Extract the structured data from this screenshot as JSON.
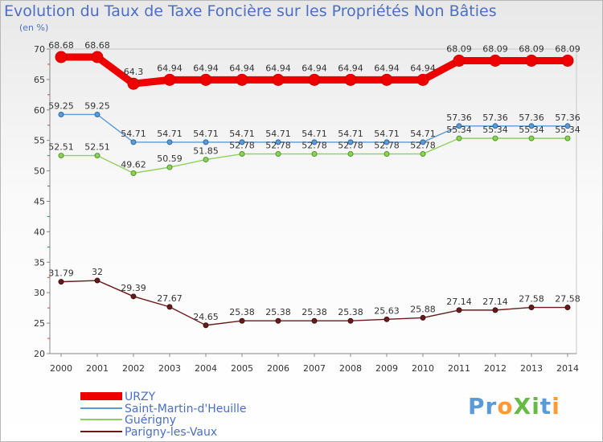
{
  "title": "Evolution du Taux de Taxe Foncière sur les Propriétés Non Bâties",
  "unit_label": "(en %)",
  "brand": "ProXiti",
  "chart_data": {
    "type": "line",
    "title": "Evolution du Taux de Taxe Foncière sur les Propriétés Non Bâties",
    "ylabel": "(en %)",
    "xlabel": "",
    "ylim": [
      20,
      70
    ],
    "yticks": [
      20,
      25,
      30,
      35,
      40,
      45,
      50,
      55,
      60,
      65,
      70
    ],
    "x": [
      "2000",
      "2001",
      "2002",
      "2003",
      "2004",
      "2005",
      "2006",
      "2007",
      "2008",
      "2009",
      "2010",
      "2011",
      "2012",
      "2013",
      "2014"
    ],
    "series": [
      {
        "name": "URZY",
        "color": "#ee0000",
        "values": [
          68.68,
          68.68,
          64.3,
          64.94,
          64.94,
          64.94,
          64.94,
          64.94,
          64.94,
          64.94,
          64.94,
          68.09,
          68.09,
          68.09,
          68.09
        ],
        "labels": [
          "68.68",
          "68.68",
          "64.3",
          "64.94",
          "64.94",
          "64.94",
          "64.94",
          "64.94",
          "64.94",
          "64.94",
          "64.94",
          "68.09",
          "68.09",
          "68.09",
          "68.09"
        ]
      },
      {
        "name": "Saint-Martin-d'Heuille",
        "color": "#5b9bd5",
        "values": [
          59.25,
          59.25,
          54.71,
          54.71,
          54.71,
          54.71,
          54.71,
          54.71,
          54.71,
          54.71,
          54.71,
          57.36,
          57.36,
          57.36,
          57.36
        ],
        "labels": [
          "59.25",
          "59.25",
          "54.71",
          "54.71",
          "54.71",
          "54.71",
          "54.71",
          "54.71",
          "54.71",
          "54.71",
          "54.71",
          "57.36",
          "57.36",
          "57.36",
          "57.36"
        ]
      },
      {
        "name": "Guérigny",
        "color": "#8ed05e",
        "values": [
          52.51,
          52.51,
          49.62,
          50.59,
          51.85,
          52.78,
          52.78,
          52.78,
          52.78,
          52.78,
          52.78,
          55.34,
          55.34,
          55.34,
          55.34
        ],
        "labels": [
          "52.51",
          "52.51",
          "49.62",
          "50.59",
          "51.85",
          "52.78",
          "52.78",
          "52.78",
          "52.78",
          "52.78",
          "52.78",
          "55.34",
          "55.34",
          "55.34",
          "55.34"
        ]
      },
      {
        "name": "Parigny-les-Vaux",
        "color": "#6b1a1a",
        "values": [
          31.79,
          32,
          29.39,
          27.67,
          24.65,
          25.38,
          25.38,
          25.38,
          25.38,
          25.63,
          25.88,
          27.14,
          27.14,
          27.58,
          27.58
        ],
        "labels": [
          "31.79",
          "32",
          "29.39",
          "27.67",
          "24.65",
          "25.38",
          "25.38",
          "25.38",
          "25.38",
          "25.63",
          "25.88",
          "27.14",
          "27.14",
          "27.58",
          "27.58"
        ]
      }
    ],
    "legend_position": "bottom-left",
    "grid": false
  }
}
